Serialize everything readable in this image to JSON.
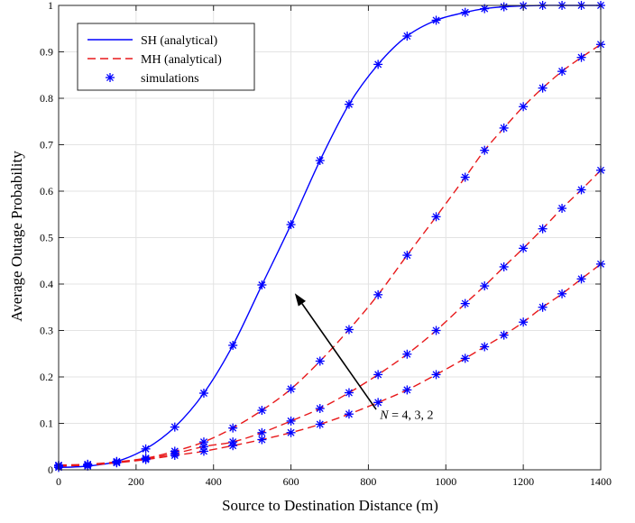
{
  "chart_data": {
    "type": "line",
    "xlabel": "Source to Destination Distance (m)",
    "ylabel": "Average Outage Probability",
    "xlim": [
      0,
      1400
    ],
    "ylim": [
      0,
      1
    ],
    "xticks": [
      0,
      200,
      400,
      600,
      800,
      1000,
      1200,
      1400
    ],
    "yticks": [
      0,
      0.1,
      0.2,
      0.3,
      0.4,
      0.5,
      0.6,
      0.7,
      0.8,
      0.9,
      1
    ],
    "xtick_labels": [
      "0",
      "200",
      "400",
      "600",
      "800",
      "1000",
      "1200",
      "1400"
    ],
    "ytick_labels": [
      "0",
      "0.1",
      "0.2",
      "0.3",
      "0.4",
      "0.5",
      "0.6",
      "0.7",
      "0.8",
      "0.9",
      "1"
    ],
    "grid": true,
    "legend_position": "top-left",
    "legend": [
      {
        "label": "SH (analytical)",
        "style": "solid",
        "color": "#0000ff"
      },
      {
        "label": "MH (analytical)",
        "style": "dashed",
        "color": "#e8191b"
      },
      {
        "label": "simulations",
        "style": "marker",
        "color": "#0000ff"
      }
    ],
    "x": [
      0,
      75,
      150,
      225,
      300,
      375,
      450,
      525,
      600,
      675,
      750,
      825,
      900,
      975,
      1050,
      1100,
      1150,
      1200,
      1250,
      1300,
      1350,
      1400
    ],
    "series": [
      {
        "group": "SH (analytical)",
        "style": "solid",
        "color": "#0000ff",
        "values": [
          0.005,
          0.008,
          0.018,
          0.045,
          0.092,
          0.165,
          0.268,
          0.398,
          0.528,
          0.666,
          0.787,
          0.873,
          0.934,
          0.968,
          0.985,
          0.993,
          0.997,
          0.999,
          1.0,
          1.0,
          1.0,
          1.0
        ]
      },
      {
        "group": "MH (analytical)",
        "style": "dashed",
        "color": "#e8191b",
        "values": [
          0.01,
          0.012,
          0.017,
          0.025,
          0.04,
          0.06,
          0.09,
          0.128,
          0.174,
          0.234,
          0.302,
          0.377,
          0.462,
          0.545,
          0.63,
          0.688,
          0.736,
          0.782,
          0.822,
          0.858,
          0.888,
          0.916
        ]
      },
      {
        "group": "MH (analytical)",
        "style": "dashed",
        "color": "#e8191b",
        "values": [
          0.009,
          0.011,
          0.016,
          0.024,
          0.035,
          0.05,
          0.06,
          0.08,
          0.105,
          0.132,
          0.166,
          0.205,
          0.249,
          0.3,
          0.358,
          0.396,
          0.437,
          0.477,
          0.519,
          0.563,
          0.603,
          0.645
        ]
      },
      {
        "group": "MH (analytical)",
        "style": "dashed",
        "color": "#e8191b",
        "values": [
          0.008,
          0.01,
          0.015,
          0.022,
          0.031,
          0.04,
          0.052,
          0.065,
          0.08,
          0.098,
          0.12,
          0.145,
          0.172,
          0.205,
          0.24,
          0.265,
          0.29,
          0.318,
          0.35,
          0.379,
          0.411,
          0.443
        ]
      }
    ],
    "annotation": {
      "text": "N = 4, 3, 2",
      "italic_prefix": "N",
      "rest": " = 4, 3, 2",
      "arrow_from": [
        820,
        0.13
      ],
      "arrow_to": [
        610,
        0.38
      ],
      "text_at": [
        830,
        0.11
      ]
    }
  }
}
